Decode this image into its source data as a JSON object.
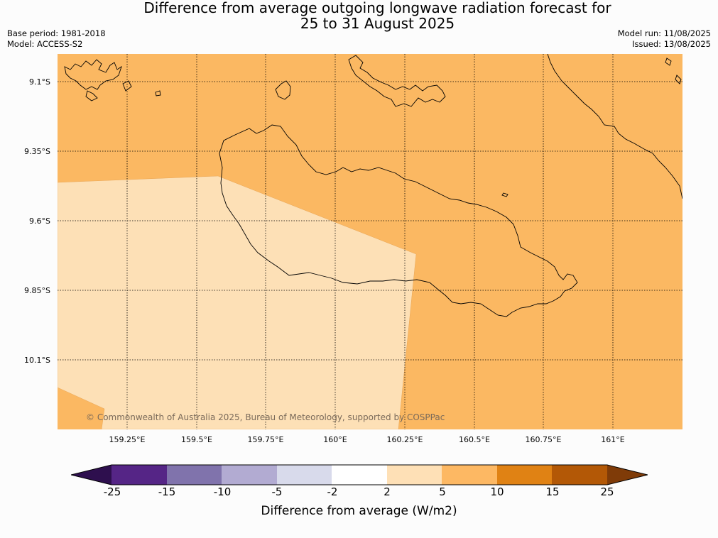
{
  "title": {
    "line1": "Difference from average outgoing longwave radiation forecast for",
    "line2": "25 to 31 August 2025"
  },
  "info": {
    "base_period": "Base period: 1981-2018",
    "model": "Model: ACCESS-S2",
    "model_run": "Model run: 11/08/2025",
    "issued": "Issued: 13/08/2025"
  },
  "map": {
    "copyright": "© Commonwealth of Australia 2025, Bureau of Meteorology, supported by COSPPac",
    "lat_labels": [
      "9.1°S",
      "9.35°S",
      "9.6°S",
      "9.85°S",
      "10.1°S"
    ],
    "lon_labels": [
      "159.25°E",
      "159.5°E",
      "159.75°E",
      "160°E",
      "160.25°E",
      "160.5°E",
      "160.75°E",
      "161°E"
    ],
    "fill_colors": {
      "band_5_10": "#fbb862",
      "band_2_5": "#fde0b6"
    },
    "coastline_color": "#000000"
  },
  "colorbar": {
    "ticks": [
      "-25",
      "-15",
      "-10",
      "-5",
      "-2",
      "2",
      "5",
      "10",
      "15",
      "25"
    ],
    "colors": [
      "#2e0f4e",
      "#552586",
      "#8073ac",
      "#b2abd2",
      "#d8daeb",
      "#ffffff",
      "#fee0b6",
      "#fdb863",
      "#e08214",
      "#b35806",
      "#7f3b08"
    ],
    "label": "Difference from average (W/m2)"
  }
}
